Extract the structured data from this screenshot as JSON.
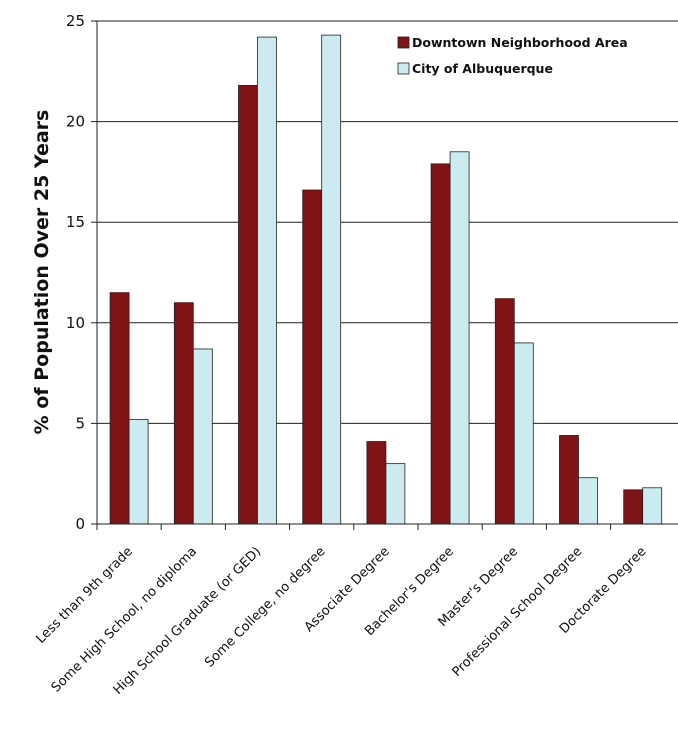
{
  "chart_data": {
    "type": "bar",
    "ylabel": "% of Population Over 25 Years",
    "xlabel": "",
    "ylim": [
      0,
      25
    ],
    "yticks": [
      0,
      5,
      10,
      15,
      20,
      25
    ],
    "grid": true,
    "legend_position": "top-right",
    "categories": [
      "Less than 9th grade",
      "Some High School, no diploma",
      "High School Graduate (or GED)",
      "Some College, no degree",
      "Associate Degree",
      "Bachelor's Degree",
      "Master's Degree",
      "Professional School Degree",
      "Doctorate Degree"
    ],
    "series": [
      {
        "name": "Downtown Neighborhood Area",
        "color": "#7f1416",
        "values": [
          11.5,
          11.0,
          21.8,
          16.6,
          4.1,
          17.9,
          11.2,
          4.4,
          1.7
        ]
      },
      {
        "name": "City of Albuquerque",
        "color": "#ccebf1",
        "values": [
          5.2,
          8.7,
          24.2,
          24.3,
          3.0,
          18.5,
          9.0,
          2.3,
          1.8
        ]
      }
    ]
  }
}
